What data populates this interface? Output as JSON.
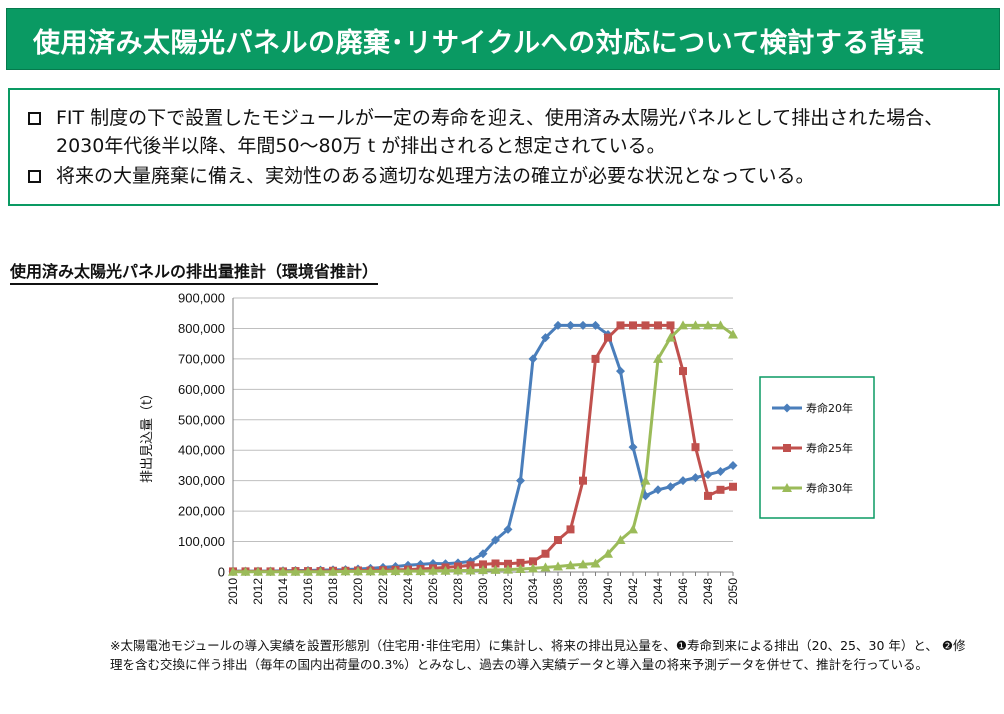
{
  "header": {
    "title": "使用済み太陽光パネルの廃棄･リサイクルへの対応について検討する背景"
  },
  "bullets": [
    "FIT 制度の下で設置したモジュールが一定の寿命を迎え、使用済み太陽光パネルとして排出された場合、2030年代後半以降、年間50～80万 t が排出されると想定されている。",
    "将来の大量廃棄に備え、実効性のある適切な処理方法の確立が必要な状況となっている。"
  ],
  "chart_heading": "使用済み太陽光パネルの排出量推計（環境省推計）",
  "footnote": "※太陽電池モジュールの導入実績を設置形態別（住宅用･非住宅用）に集計し、将来の排出見込量を、❶寿命到来による排出（20、25、30 年）と、 ❷修理を含む交換に伴う排出（毎年の国内出荷量の0.3%）とみなし、過去の導入実績データと導入量の将来予測データを併せて、推計を行っている。",
  "chart_data": {
    "type": "line",
    "title": "使用済み太陽光パネルの排出量推計（環境省推計）",
    "ylabel": "排出見込量（t）",
    "xlabel": "",
    "ylim": [
      0,
      900000
    ],
    "yticks": [
      0,
      100000,
      200000,
      300000,
      400000,
      500000,
      600000,
      700000,
      800000,
      900000
    ],
    "ytick_labels": [
      "0",
      "100,000",
      "200,000",
      "300,000",
      "400,000",
      "500,000",
      "600,000",
      "700,000",
      "800,000",
      "900,000"
    ],
    "x_tick_labels": [
      "2010",
      "2012",
      "2014",
      "2016",
      "2018",
      "2020",
      "2022",
      "2024",
      "2026",
      "2028",
      "2030",
      "2032",
      "2034",
      "2036",
      "2038",
      "2040",
      "2042",
      "2044",
      "2046",
      "2048",
      "2050"
    ],
    "x": [
      2010,
      2011,
      2012,
      2013,
      2014,
      2015,
      2016,
      2017,
      2018,
      2019,
      2020,
      2021,
      2022,
      2023,
      2024,
      2025,
      2026,
      2027,
      2028,
      2029,
      2030,
      2031,
      2032,
      2033,
      2034,
      2035,
      2036,
      2037,
      2038,
      2039,
      2040,
      2041,
      2042,
      2043,
      2044,
      2045,
      2046,
      2047,
      2048,
      2049,
      2050
    ],
    "grid": "horizontal",
    "legend_position": "right",
    "series": [
      {
        "name": "寿命20年",
        "color": "#4a7ebb",
        "marker": "diamond",
        "values": [
          3000,
          3000,
          3000,
          3000,
          4000,
          5000,
          5000,
          6000,
          7000,
          8000,
          10000,
          12000,
          15000,
          18000,
          22000,
          25000,
          28000,
          27000,
          30000,
          35000,
          60000,
          105000,
          140000,
          300000,
          700000,
          770000,
          810000,
          810000,
          810000,
          810000,
          780000,
          660000,
          410000,
          250000,
          270000,
          280000,
          300000,
          310000,
          320000,
          330000,
          350000
        ]
      },
      {
        "name": "寿命25年",
        "color": "#c0504d",
        "marker": "square",
        "values": [
          2000,
          2000,
          2000,
          2000,
          2000,
          3000,
          3000,
          3000,
          4000,
          4000,
          5000,
          5000,
          6000,
          7000,
          8000,
          10000,
          12000,
          15000,
          18000,
          22000,
          25000,
          28000,
          27000,
          30000,
          35000,
          60000,
          105000,
          140000,
          300000,
          700000,
          770000,
          810000,
          810000,
          810000,
          810000,
          810000,
          660000,
          410000,
          250000,
          270000,
          280000
        ]
      },
      {
        "name": "寿命30年",
        "color": "#9bbb59",
        "marker": "triangle",
        "values": [
          1000,
          1000,
          1000,
          1000,
          1000,
          1000,
          1000,
          1000,
          1000,
          2000,
          2000,
          2000,
          2000,
          3000,
          3000,
          3000,
          4000,
          4000,
          5000,
          5000,
          6000,
          7000,
          8000,
          10000,
          12000,
          15000,
          18000,
          22000,
          25000,
          28000,
          60000,
          105000,
          140000,
          300000,
          700000,
          770000,
          810000,
          810000,
          810000,
          810000,
          780000
        ]
      }
    ]
  }
}
